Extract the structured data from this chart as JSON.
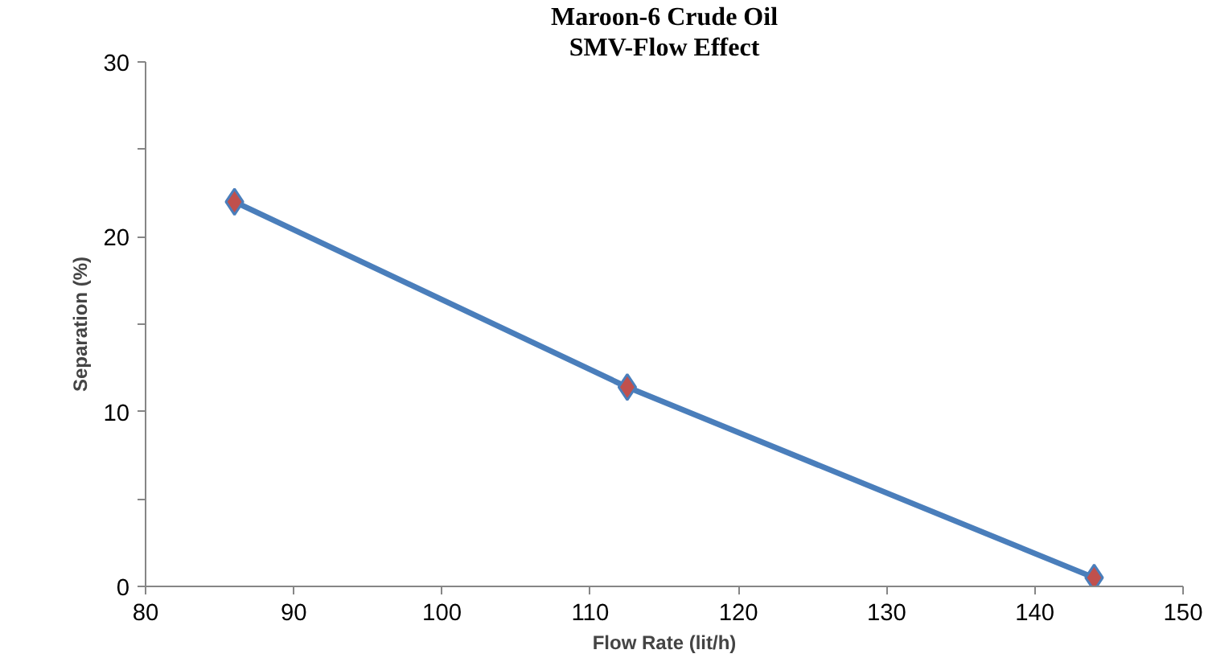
{
  "chart_data": {
    "type": "line",
    "title": "Maroon-6 Crude Oil",
    "subtitle": "SMV-Flow Effect",
    "xlabel": "Flow Rate (lit/h)",
    "ylabel": "Separation (%)",
    "x": [
      86,
      112.5,
      144
    ],
    "series": [
      {
        "color": "#4a7ebb",
        "colors": [
          "#c0504d",
          "#c0504d",
          "#c0504d"
        ],
        "values": [
          22,
          11.4,
          0.5
        ]
      }
    ],
    "xlim": [
      80,
      150
    ],
    "xticks": [
      80,
      90,
      100,
      110,
      120,
      130,
      140,
      150
    ],
    "ylim": [
      0,
      30
    ],
    "yticks": [
      0,
      {
        "value": 5,
        "label": null
      },
      10,
      {
        "value": 15,
        "label": null
      },
      20,
      {
        "value": 25,
        "label": null
      },
      30
    ],
    "marker": "diamond",
    "line_style": "solid",
    "grid": false
  }
}
